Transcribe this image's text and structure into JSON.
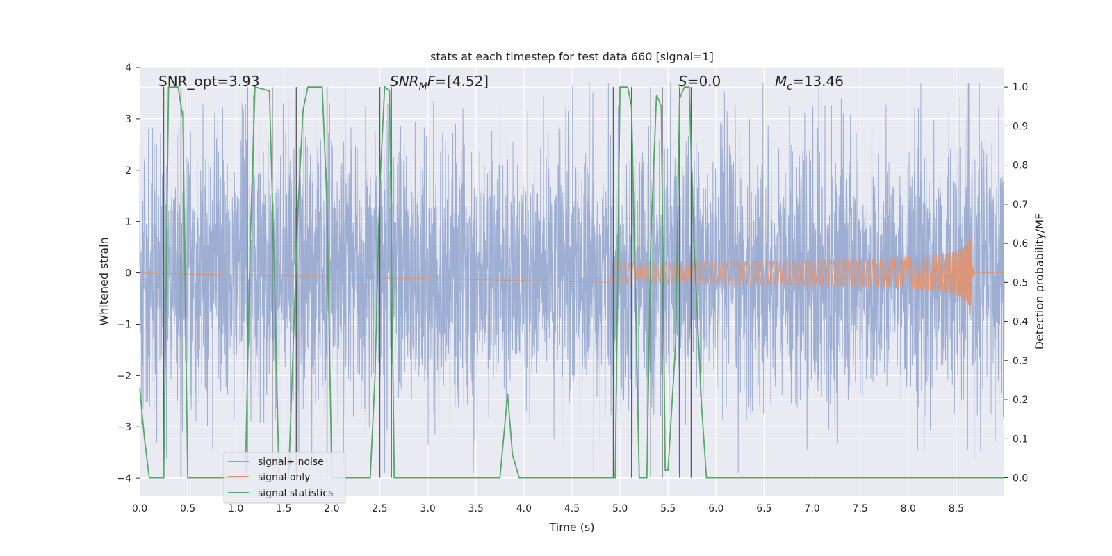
{
  "chart_data": {
    "type": "line",
    "title": "stats at each timestep for test data 660 [signal=1]",
    "xlabel": "Time (s)",
    "ylabel_left": "Whitened strain",
    "ylabel_right": "Detection probability/MF",
    "xlim": [
      0.0,
      9.0
    ],
    "ylim_left": [
      -4.35,
      4.0
    ],
    "ylim_right": [
      -0.047,
      1.05
    ],
    "x_ticks": [
      "0.0",
      "0.5",
      "1.0",
      "1.5",
      "2.0",
      "2.5",
      "3.0",
      "3.5",
      "4.0",
      "4.5",
      "5.0",
      "5.5",
      "6.0",
      "6.5",
      "7.0",
      "7.5",
      "8.0",
      "8.5"
    ],
    "y_ticks_left": [
      "4",
      "3",
      "2",
      "1",
      "0",
      "−1",
      "−2",
      "−3",
      "−4"
    ],
    "y_ticks_right": [
      "1.0",
      "0.9",
      "0.8",
      "0.7",
      "0.6",
      "0.5",
      "0.4",
      "0.3",
      "0.2",
      "0.1",
      "0.0"
    ],
    "grid": true,
    "legend_position": "lower-left",
    "annotations": [
      {
        "id": "snr-opt",
        "parts": [
          {
            "text": "SNR_opt=3.93"
          }
        ]
      },
      {
        "id": "snr-mf",
        "parts": [
          {
            "text": "SNR",
            "style": "italic"
          },
          {
            "text": "M",
            "style": "italic-sub"
          },
          {
            "text": "F",
            "style": "italic"
          },
          {
            "text": "=[4.52]"
          }
        ]
      },
      {
        "id": "s-stat",
        "parts": [
          {
            "text": "S",
            "style": "italic"
          },
          {
            "text": "=0.0"
          }
        ]
      },
      {
        "id": "mc",
        "parts": [
          {
            "text": "M",
            "style": "italic"
          },
          {
            "text": "c",
            "style": "italic-sub"
          },
          {
            "text": "=13.46"
          }
        ]
      }
    ],
    "series": [
      {
        "name": "signal+ noise",
        "axis": "left",
        "color": "#8fa3cc",
        "kind": "noise",
        "amplitude": 1.3,
        "spike_max": 3.7
      },
      {
        "name": "signal only",
        "axis": "left",
        "color": "#e1926e",
        "kind": "chirp",
        "onset": 4.9,
        "merger": 8.65,
        "peak_amplitude": 0.85
      },
      {
        "name": "signal statistics",
        "axis": "right",
        "color": "#55a868",
        "x": [
          0.0,
          0.05,
          0.1,
          0.25,
          0.3,
          0.4,
          0.45,
          0.5,
          0.55,
          0.6,
          1.1,
          1.15,
          1.2,
          1.35,
          1.4,
          1.45,
          1.55,
          1.65,
          1.7,
          1.75,
          1.9,
          1.95,
          2.0,
          2.05,
          2.4,
          2.45,
          2.5,
          2.55,
          2.6,
          2.65,
          2.7,
          3.0,
          3.5,
          3.75,
          3.83,
          3.88,
          3.95,
          4.5,
          4.95,
          5.0,
          5.08,
          5.12,
          5.2,
          5.28,
          5.32,
          5.38,
          5.43,
          5.47,
          5.5,
          5.58,
          5.62,
          5.67,
          5.72,
          5.77,
          5.85,
          5.9,
          6.5,
          7.5,
          8.5,
          9.0
        ],
        "y": [
          0.23,
          0.1,
          0.0,
          0.0,
          1.0,
          1.0,
          0.92,
          0.0,
          0.0,
          0.0,
          0.0,
          0.6,
          1.0,
          0.99,
          0.55,
          0.0,
          0.0,
          0.7,
          0.94,
          1.0,
          1.0,
          0.7,
          0.0,
          0.0,
          0.0,
          0.26,
          0.75,
          1.0,
          0.99,
          0.0,
          0.0,
          0.0,
          0.0,
          0.0,
          0.215,
          0.06,
          0.0,
          0.0,
          0.0,
          1.0,
          1.0,
          0.95,
          0.0,
          0.0,
          0.6,
          0.98,
          0.95,
          0.02,
          0.02,
          0.35,
          0.97,
          1.0,
          1.0,
          0.6,
          0.18,
          0.0,
          0.0,
          0.0,
          0.0,
          0.0
        ]
      }
    ],
    "vertical_markers_x": [
      0.25,
      0.43,
      1.12,
      1.38,
      1.63,
      1.95,
      2.5,
      2.62,
      4.93,
      5.12,
      5.32,
      5.44,
      5.62,
      5.74
    ]
  }
}
